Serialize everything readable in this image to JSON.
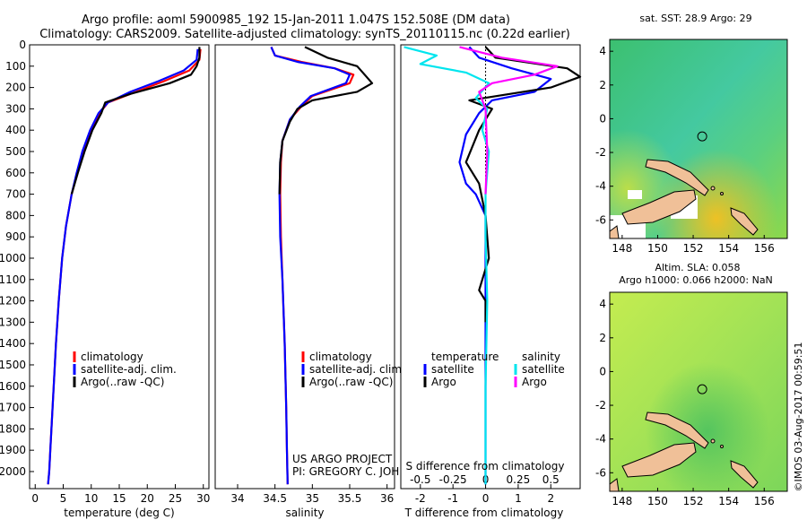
{
  "title": {
    "line1": "Argo profile: aoml 5900985_192 15-Jan-2011 1.047S 152.508E (DM data)",
    "line2": "Climatology: CARS2009. Satellite-adjusted climatology: synTS_20110115.nc (0.22d earlier)"
  },
  "credits": {
    "project": "US ARGO PROJECT",
    "pi": "PI: GREGORY C. JOHNSON"
  },
  "stamp": "©IMOS 03-Aug-2017 00:59:51",
  "colors": {
    "climatology": "#ff0000",
    "satellite": "#0000ff",
    "argo": "#000000",
    "sal_satellite": "#00e5ee",
    "sal_argo": "#ff00ff",
    "land": "#f0c098",
    "ocean_sst": "#4cc87a",
    "ocean_sla": "#a8e85a"
  },
  "chart_data": [
    {
      "type": "line",
      "id": "temperature",
      "xlabel": "temperature (deg C)",
      "xlim": [
        -1,
        31
      ],
      "ylim": [
        2080,
        0
      ],
      "xticks": [
        0,
        5,
        10,
        15,
        20,
        25,
        30
      ],
      "ytick_labels": [
        "0",
        "100",
        "200",
        "300",
        "400",
        "500",
        "600",
        "700",
        "800",
        "900",
        "1000",
        "1100",
        "1200",
        "1300",
        "1400",
        "1500",
        "1600",
        "1700",
        "1800",
        "1900",
        "2000"
      ],
      "legend": [
        "climatology",
        "satellite-adj. clim.",
        "Argo(..raw -QC)"
      ],
      "series": [
        {
          "name": "climatology",
          "color": "#ff0000",
          "x": [
            29.5,
            29.3,
            27.5,
            23,
            18,
            13,
            11.5,
            10,
            8.5,
            7.5,
            6.5,
            5.5,
            4.8,
            4.2,
            3.7,
            3.3,
            3.0,
            2.7,
            2.5,
            2.3
          ],
          "y": [
            20,
            70,
            120,
            170,
            220,
            270,
            320,
            400,
            500,
            600,
            700,
            850,
            1000,
            1200,
            1400,
            1600,
            1750,
            1900,
            2000,
            2060
          ]
        },
        {
          "name": "satellite-adj. clim.",
          "color": "#0000ff",
          "x": [
            29.0,
            28.8,
            26.5,
            22,
            17,
            13,
            11.3,
            9.8,
            8.4,
            7.4,
            6.5,
            5.5,
            4.8,
            4.2,
            3.7,
            3.3,
            3.0,
            2.7,
            2.5,
            2.3
          ],
          "y": [
            20,
            70,
            120,
            170,
            220,
            270,
            320,
            400,
            500,
            600,
            700,
            850,
            1000,
            1200,
            1400,
            1600,
            1750,
            1900,
            2000,
            2060
          ]
        },
        {
          "name": "Argo(..raw -QC)",
          "color": "#000000",
          "x": [
            29.3,
            29.3,
            28.8,
            27.8,
            24,
            17,
            12.5,
            11.8,
            10.2,
            8.8,
            7.6,
            6.5
          ],
          "y": [
            10,
            60,
            100,
            140,
            180,
            230,
            270,
            320,
            400,
            500,
            600,
            700
          ]
        }
      ]
    },
    {
      "type": "line",
      "id": "salinity",
      "xlabel": "salinity",
      "xlim": [
        33.7,
        36.1
      ],
      "ylim": [
        2080,
        0
      ],
      "xticks": [
        34,
        34.5,
        35,
        35.5,
        36
      ],
      "legend": [
        "climatology",
        "satellite-adj. clim.",
        "Argo(..raw -QC)"
      ],
      "series": [
        {
          "name": "climatology",
          "color": "#ff0000",
          "x": [
            34.45,
            34.5,
            34.85,
            35.3,
            35.55,
            35.5,
            35.0,
            34.85,
            34.7,
            34.6,
            34.58,
            34.57,
            34.58,
            34.6,
            34.63,
            34.65,
            34.66,
            34.67
          ],
          "y": [
            10,
            50,
            80,
            110,
            140,
            180,
            240,
            290,
            350,
            450,
            550,
            700,
            900,
            1100,
            1400,
            1700,
            1900,
            2060
          ]
        },
        {
          "name": "satellite-adj. clim.",
          "color": "#0000ff",
          "x": [
            34.45,
            34.5,
            34.8,
            35.3,
            35.5,
            35.45,
            34.98,
            34.83,
            34.7,
            34.6,
            34.57,
            34.56,
            34.57,
            34.6,
            34.63,
            34.65,
            34.66,
            34.67
          ],
          "y": [
            10,
            50,
            80,
            110,
            140,
            180,
            240,
            290,
            350,
            450,
            550,
            700,
            900,
            1100,
            1400,
            1700,
            1900,
            2060
          ]
        },
        {
          "name": "Argo(..raw -QC)",
          "color": "#000000",
          "x": [
            34.9,
            35.2,
            35.6,
            35.7,
            35.8,
            35.6,
            35.0,
            34.8,
            34.7,
            34.6,
            34.57,
            34.56
          ],
          "y": [
            10,
            60,
            100,
            140,
            180,
            220,
            260,
            300,
            360,
            450,
            550,
            700
          ]
        }
      ]
    },
    {
      "type": "line",
      "id": "difference",
      "xlabel": "T difference from climatology",
      "xlabel_top": "S difference from climatology",
      "xlim": [
        -2.6,
        2.9
      ],
      "ylim": [
        2080,
        0
      ],
      "xticks": [
        -2,
        -1,
        0,
        1,
        2
      ],
      "xticks_s": [
        -0.5,
        -0.25,
        0,
        0.25,
        0.5
      ],
      "legend_temperature": "temperature",
      "legend_salinity": "salinity",
      "legend_labels": [
        "satellite",
        "Argo",
        "satellite",
        "Argo"
      ],
      "series": [
        {
          "name": "T satellite",
          "color": "#0000ff",
          "x": [
            -0.5,
            -0.2,
            0.8,
            2.0,
            1.5,
            0.2,
            -0.2,
            -0.6,
            -0.8,
            -0.6,
            -0.3,
            0,
            0,
            0,
            0
          ],
          "y": [
            10,
            60,
            110,
            160,
            220,
            260,
            320,
            420,
            550,
            650,
            700,
            800,
            1000,
            1500,
            2060
          ]
        },
        {
          "name": "T Argo",
          "color": "#000000",
          "x": [
            0,
            0.3,
            2.5,
            2.9,
            2.0,
            -0.5,
            0.2,
            -0.2,
            -0.6,
            -0.2,
            0,
            0.1,
            -0.1,
            -0.2,
            0,
            0
          ],
          "y": [
            10,
            60,
            110,
            150,
            200,
            260,
            300,
            400,
            550,
            650,
            800,
            1000,
            1100,
            1150,
            1200,
            1300
          ]
        },
        {
          "name": "S satellite",
          "color": "#00e5ee",
          "x": [
            -2.5,
            -1.5,
            -2.0,
            -0.6,
            0.1,
            -0.3,
            0.05,
            -0.1,
            0.1,
            0,
            0,
            0.05,
            0,
            0
          ],
          "y": [
            10,
            50,
            90,
            130,
            180,
            250,
            300,
            400,
            500,
            700,
            900,
            1200,
            1600,
            2060
          ]
        },
        {
          "name": "S Argo",
          "color": "#ff00ff",
          "x": [
            -0.8,
            0.5,
            2.2,
            1.5,
            0.2,
            -0.2,
            0,
            0.05,
            0
          ],
          "y": [
            10,
            60,
            100,
            140,
            180,
            220,
            300,
            500,
            700
          ]
        }
      ]
    },
    {
      "type": "heatmap",
      "id": "sst-map",
      "title": "sat. SST: 28.9 Argo: 29",
      "xlim": [
        147.3,
        157.3
      ],
      "ylim": [
        -7.1,
        4.7
      ],
      "xticks": [
        148,
        150,
        152,
        154,
        156
      ],
      "yticks": [
        4,
        2,
        0,
        -2,
        -4,
        -6
      ],
      "marker": {
        "lon": 152.508,
        "lat": -1.047
      }
    },
    {
      "type": "heatmap",
      "id": "sla-map",
      "title_line1": "Altim. SLA: 0.058",
      "title_line2": "Argo h1000: 0.066 h2000: NaN",
      "xlim": [
        147.3,
        157.3
      ],
      "ylim": [
        -7.1,
        4.7
      ],
      "xticks": [
        148,
        150,
        152,
        154,
        156
      ],
      "yticks": [
        4,
        2,
        0,
        -2,
        -4,
        -6
      ],
      "marker": {
        "lon": 152.508,
        "lat": -1.047
      }
    }
  ]
}
